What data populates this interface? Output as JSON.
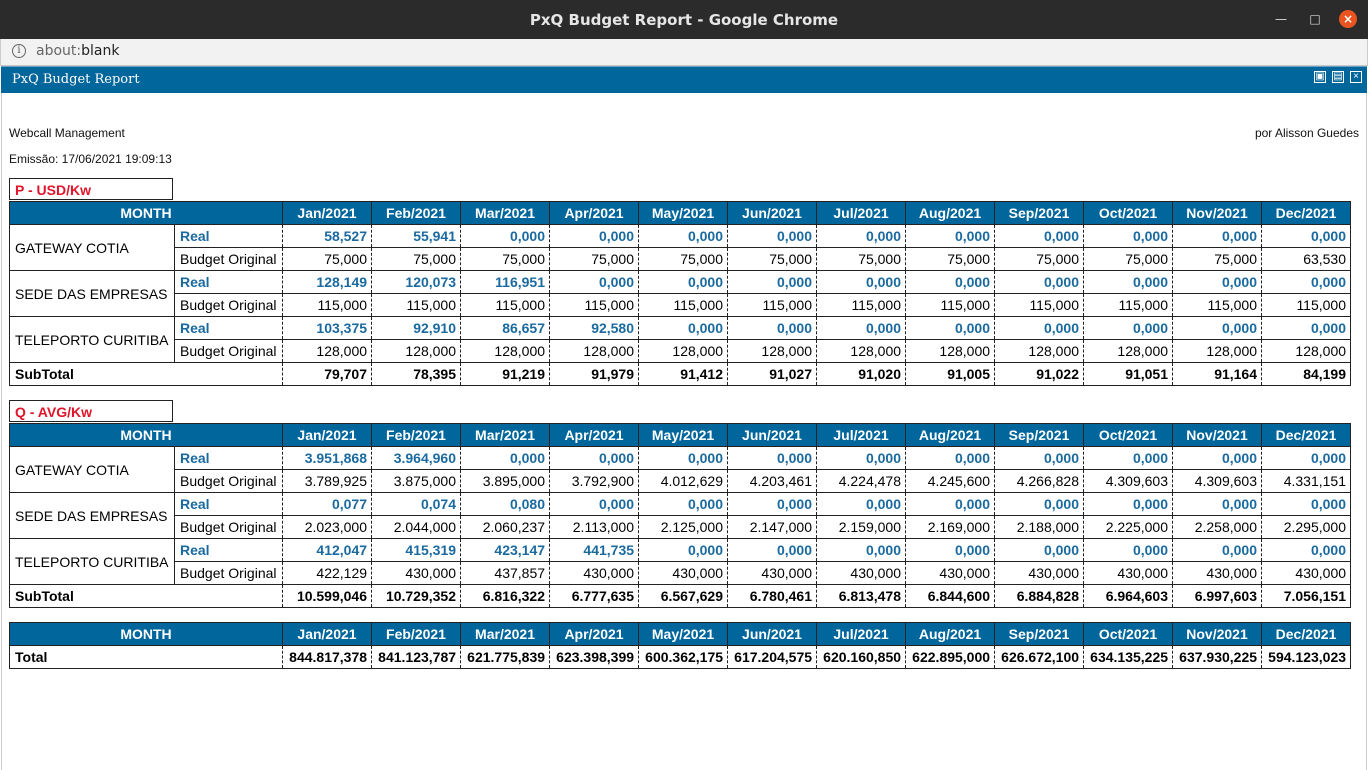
{
  "window": {
    "title": "PxQ Budget Report - Google Chrome"
  },
  "address": {
    "scheme": "about:",
    "path": "blank"
  },
  "app": {
    "title": "PxQ Budget Report"
  },
  "header": {
    "company": "Webcall Management",
    "author": "por Alisson Guedes",
    "issued": "Emissão: 17/06/2021 19:09:13"
  },
  "months": [
    "Jan/2021",
    "Feb/2021",
    "Mar/2021",
    "Apr/2021",
    "May/2021",
    "Jun/2021",
    "Jul/2021",
    "Aug/2021",
    "Sep/2021",
    "Oct/2021",
    "Nov/2021",
    "Dec/2021"
  ],
  "month_header": "MONTH",
  "labels": {
    "real": "Real",
    "budget": "Budget Original",
    "subtotal": "SubTotal",
    "total": "Total"
  },
  "colors": {
    "header_bg": "#00669b",
    "section_title": "#e0142a",
    "real_text": "#1a6aa0"
  },
  "sections": [
    {
      "title": "P - USD/Kw",
      "places": [
        {
          "name": "GATEWAY COTIA",
          "real": [
            "58,527",
            "55,941",
            "0,000",
            "0,000",
            "0,000",
            "0,000",
            "0,000",
            "0,000",
            "0,000",
            "0,000",
            "0,000",
            "0,000"
          ],
          "budget": [
            "75,000",
            "75,000",
            "75,000",
            "75,000",
            "75,000",
            "75,000",
            "75,000",
            "75,000",
            "75,000",
            "75,000",
            "75,000",
            "63,530"
          ]
        },
        {
          "name": "SEDE DAS EMPRESAS",
          "real": [
            "128,149",
            "120,073",
            "116,951",
            "0,000",
            "0,000",
            "0,000",
            "0,000",
            "0,000",
            "0,000",
            "0,000",
            "0,000",
            "0,000"
          ],
          "budget": [
            "115,000",
            "115,000",
            "115,000",
            "115,000",
            "115,000",
            "115,000",
            "115,000",
            "115,000",
            "115,000",
            "115,000",
            "115,000",
            "115,000"
          ]
        },
        {
          "name": "TELEPORTO CURITIBA",
          "real": [
            "103,375",
            "92,910",
            "86,657",
            "92,580",
            "0,000",
            "0,000",
            "0,000",
            "0,000",
            "0,000",
            "0,000",
            "0,000",
            "0,000"
          ],
          "budget": [
            "128,000",
            "128,000",
            "128,000",
            "128,000",
            "128,000",
            "128,000",
            "128,000",
            "128,000",
            "128,000",
            "128,000",
            "128,000",
            "128,000"
          ]
        }
      ],
      "subtotal": [
        "79,707",
        "78,395",
        "91,219",
        "91,979",
        "91,412",
        "91,027",
        "91,020",
        "91,005",
        "91,022",
        "91,051",
        "91,164",
        "84,199"
      ]
    },
    {
      "title": "Q - AVG/Kw",
      "places": [
        {
          "name": "GATEWAY COTIA",
          "real": [
            "3.951,868",
            "3.964,960",
            "0,000",
            "0,000",
            "0,000",
            "0,000",
            "0,000",
            "0,000",
            "0,000",
            "0,000",
            "0,000",
            "0,000"
          ],
          "budget": [
            "3.789,925",
            "3.875,000",
            "3.895,000",
            "3.792,900",
            "4.012,629",
            "4.203,461",
            "4.224,478",
            "4.245,600",
            "4.266,828",
            "4.309,603",
            "4.309,603",
            "4.331,151"
          ]
        },
        {
          "name": "SEDE DAS EMPRESAS",
          "real": [
            "0,077",
            "0,074",
            "0,080",
            "0,000",
            "0,000",
            "0,000",
            "0,000",
            "0,000",
            "0,000",
            "0,000",
            "0,000",
            "0,000"
          ],
          "budget": [
            "2.023,000",
            "2.044,000",
            "2.060,237",
            "2.113,000",
            "2.125,000",
            "2.147,000",
            "2.159,000",
            "2.169,000",
            "2.188,000",
            "2.225,000",
            "2.258,000",
            "2.295,000"
          ]
        },
        {
          "name": "TELEPORTO CURITIBA",
          "real": [
            "412,047",
            "415,319",
            "423,147",
            "441,735",
            "0,000",
            "0,000",
            "0,000",
            "0,000",
            "0,000",
            "0,000",
            "0,000",
            "0,000"
          ],
          "budget": [
            "422,129",
            "430,000",
            "437,857",
            "430,000",
            "430,000",
            "430,000",
            "430,000",
            "430,000",
            "430,000",
            "430,000",
            "430,000",
            "430,000"
          ]
        }
      ],
      "subtotal": [
        "10.599,046",
        "10.729,352",
        "6.816,322",
        "6.777,635",
        "6.567,629",
        "6.780,461",
        "6.813,478",
        "6.844,600",
        "6.884,828",
        "6.964,603",
        "6.997,603",
        "7.056,151"
      ]
    }
  ],
  "total": [
    "844.817,378",
    "841.123,787",
    "621.775,839",
    "623.398,399",
    "600.362,175",
    "617.204,575",
    "620.160,850",
    "622.895,000",
    "626.672,100",
    "634.135,225",
    "637.930,225",
    "594.123,023"
  ]
}
